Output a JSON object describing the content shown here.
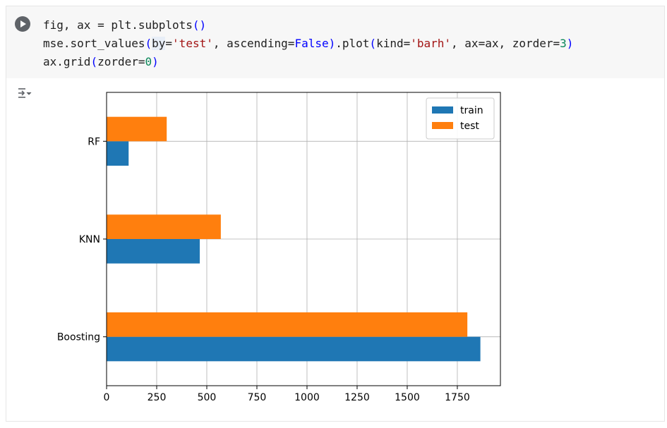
{
  "cell": {
    "code_lines": [
      "fig, ax = plt.subplots()",
      "mse.sort_values(by='test', ascending=False).plot(kind='barh', ax=ax, zorder=3)",
      "ax.grid(zorder=0)"
    ],
    "run_icon": "play-circle-icon",
    "output_icon": "output-toggle-icon"
  },
  "chart_data": {
    "type": "bar",
    "orientation": "horizontal",
    "categories": [
      "Boosting",
      "KNN",
      "RF"
    ],
    "series": [
      {
        "name": "train",
        "values": [
          1865,
          465,
          110
        ],
        "color": "#1f77b4"
      },
      {
        "name": "test",
        "values": [
          1800,
          570,
          300
        ],
        "color": "#ff7f0e"
      }
    ],
    "xlim": [
      0,
      1965
    ],
    "xticks": [
      0,
      250,
      500,
      750,
      1000,
      1250,
      1500,
      1750
    ],
    "grid": true,
    "legend": "top-right"
  }
}
